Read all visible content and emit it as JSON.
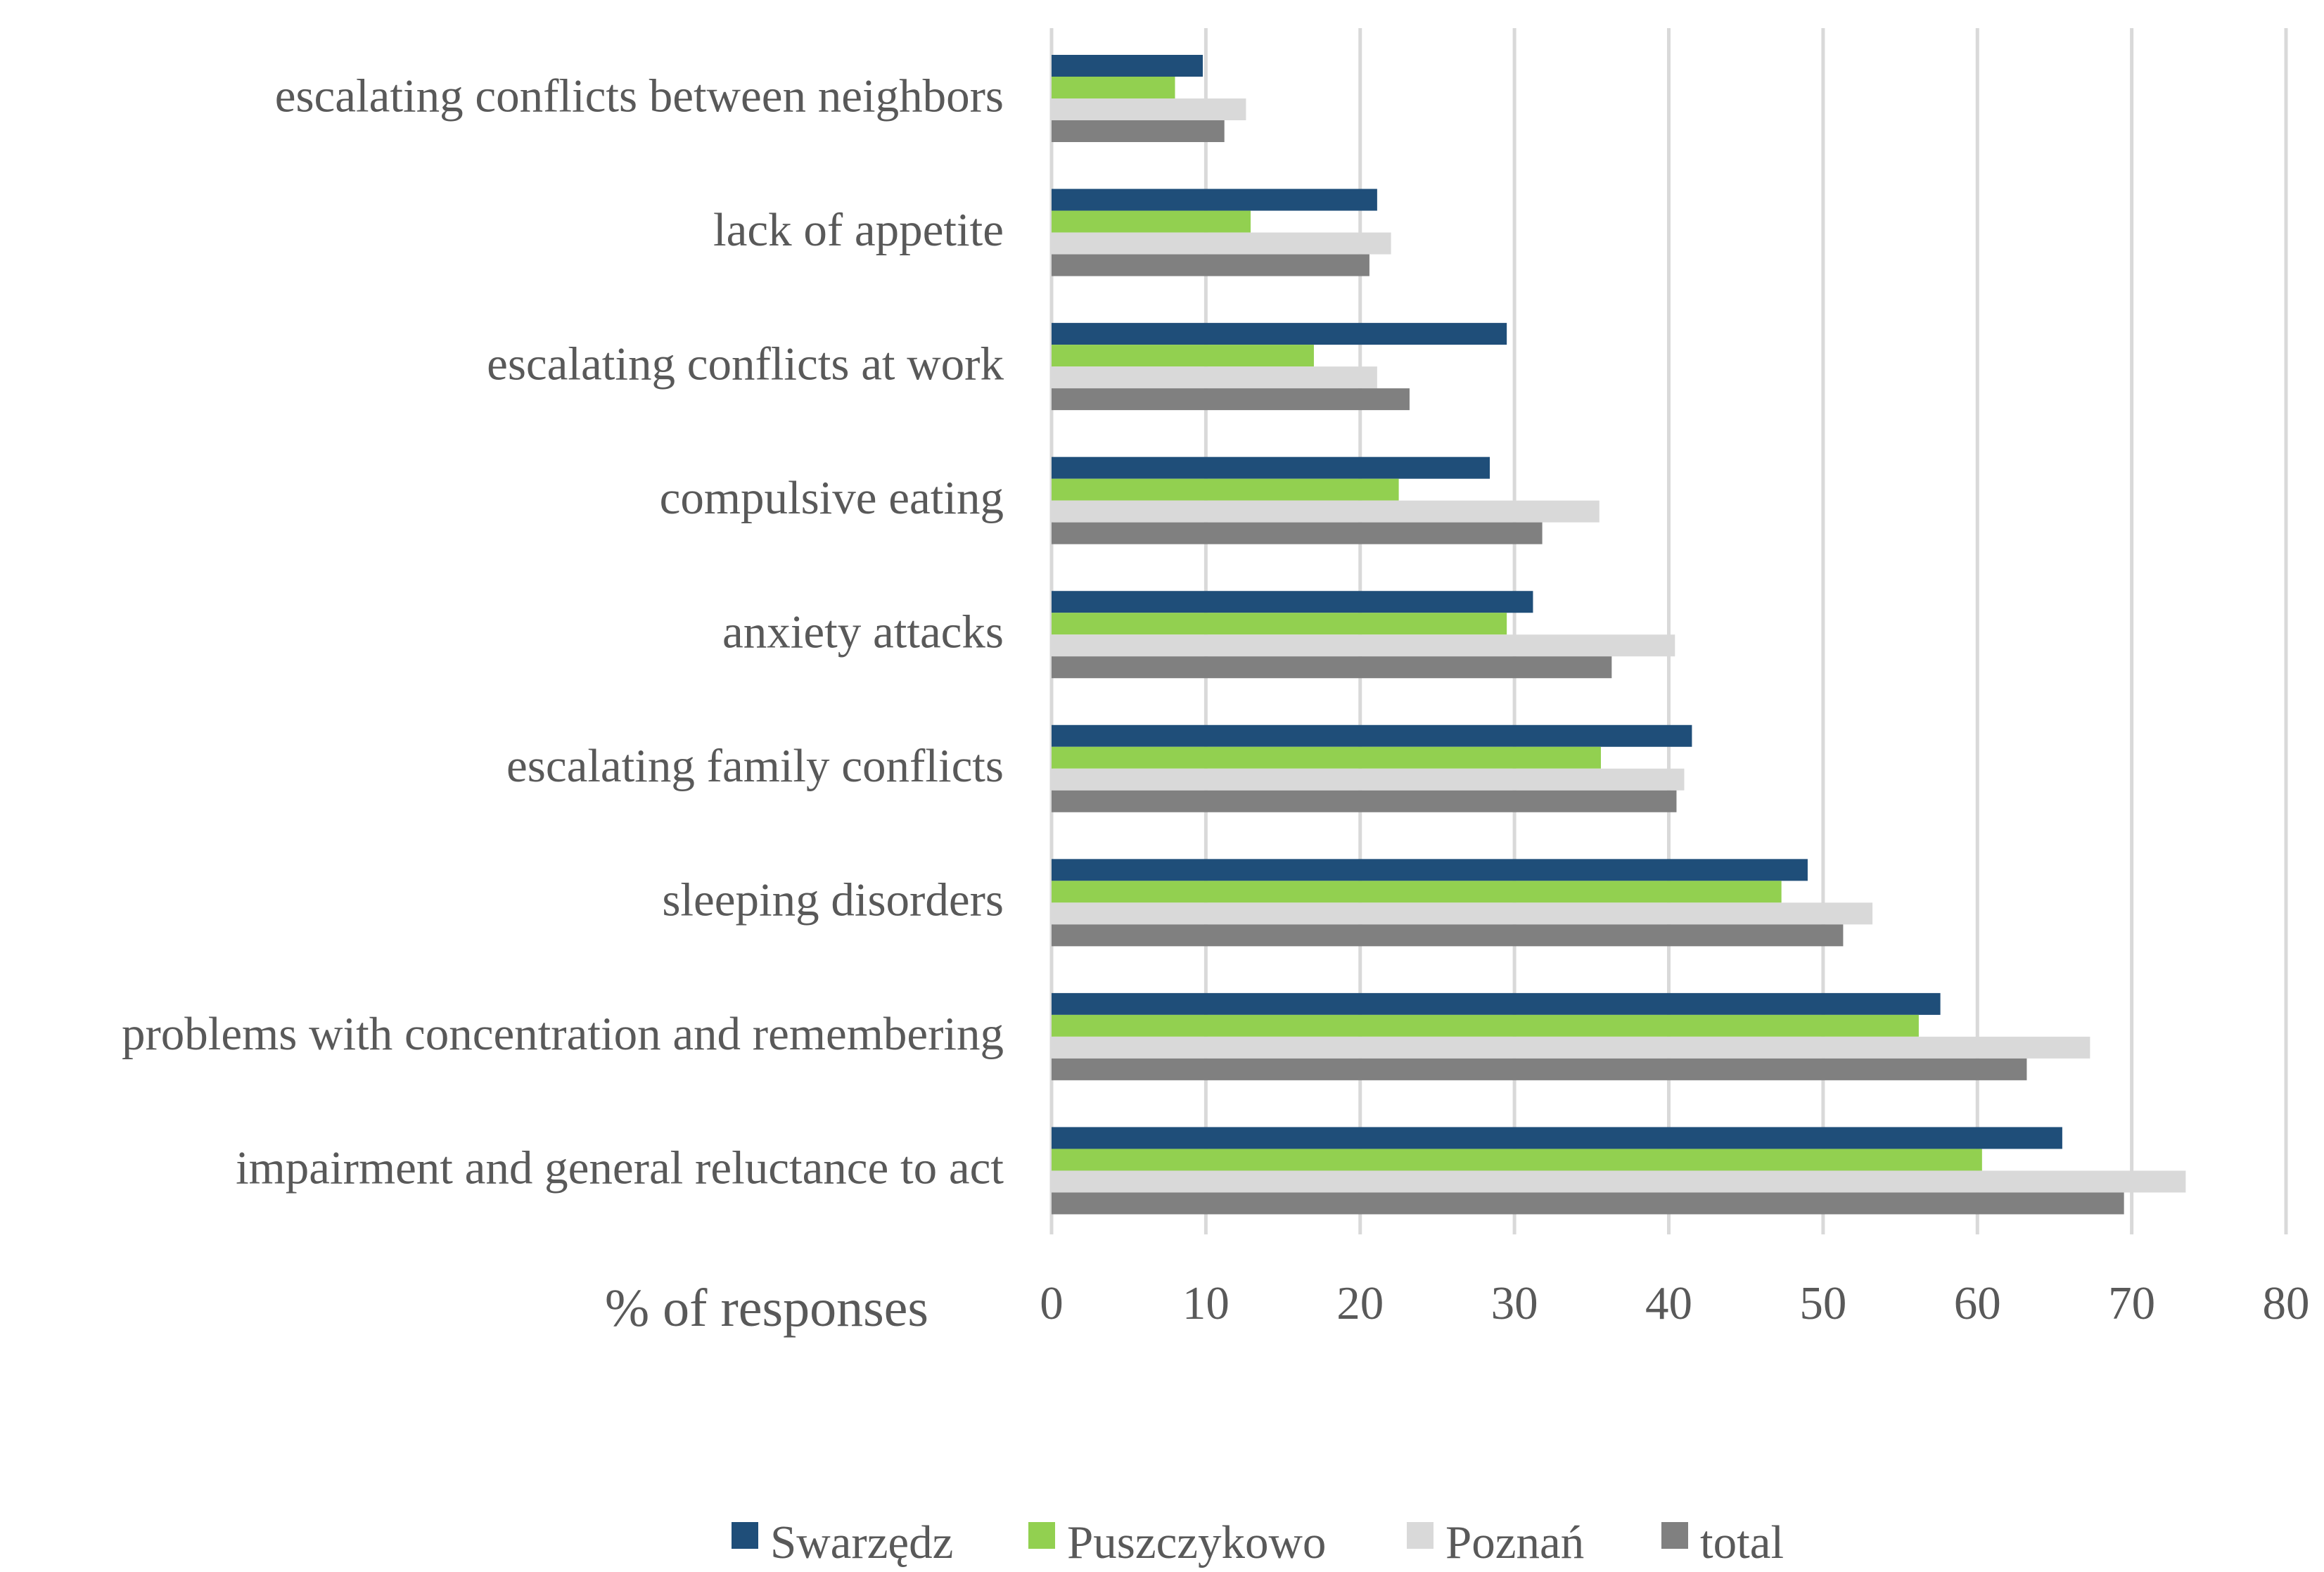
{
  "chart_data": {
    "type": "bar",
    "orientation": "horizontal",
    "title": "",
    "xlabel": "% of responses",
    "ylabel": "",
    "xlim": [
      0,
      80
    ],
    "ticks": [
      "0",
      "10",
      "20",
      "30",
      "40",
      "50",
      "60",
      "70",
      "80"
    ],
    "grid": true,
    "legend_position": "bottom",
    "categories": [
      "escalating conflicts between neighbors",
      "lack of appetite",
      "escalating conflicts at work",
      "compulsive eating",
      "anxiety attacks",
      "escalating family conflicts",
      "sleeping disorders",
      "problems with concentration and remembering",
      "impairment and general reluctance to act"
    ],
    "series": [
      {
        "name": "Swarzędz",
        "color": "#1f4e79",
        "values": [
          9.8,
          21.1,
          29.5,
          28.4,
          31.2,
          41.5,
          49.0,
          57.6,
          65.5
        ]
      },
      {
        "name": "Puszczykowo",
        "color": "#92d050",
        "values": [
          8.0,
          12.9,
          17.0,
          22.5,
          29.5,
          35.6,
          47.3,
          56.2,
          60.3
        ]
      },
      {
        "name": "Poznań",
        "color": "#d9d9d9",
        "values": [
          12.6,
          22.0,
          21.1,
          35.5,
          40.4,
          41.0,
          53.2,
          67.3,
          73.5
        ]
      },
      {
        "name": "total",
        "color": "#808080",
        "values": [
          11.2,
          20.6,
          23.2,
          31.8,
          36.3,
          40.5,
          51.3,
          63.2,
          69.5
        ]
      }
    ]
  }
}
